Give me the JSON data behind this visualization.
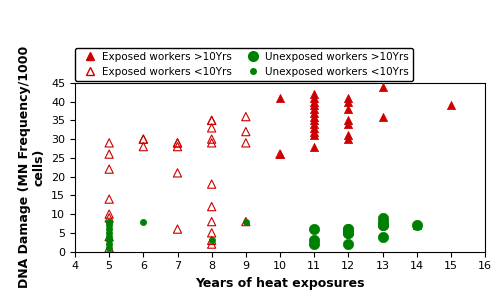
{
  "title": "",
  "xlabel": "Years of heat exposures",
  "ylabel": "DNA Damage (MN Frequency/1000\ncells)",
  "xlim": [
    4,
    16
  ],
  "ylim": [
    0,
    45
  ],
  "xticks": [
    4,
    5,
    6,
    7,
    8,
    9,
    10,
    11,
    12,
    13,
    14,
    15,
    16
  ],
  "yticks": [
    0,
    5,
    10,
    15,
    20,
    25,
    30,
    35,
    40,
    45
  ],
  "exposed_gt10_x": [
    10,
    10,
    11,
    11,
    11,
    11,
    11,
    11,
    11,
    11,
    11,
    11,
    11,
    11,
    11,
    12,
    12,
    12,
    12,
    12,
    12,
    12,
    13,
    13,
    14,
    15
  ],
  "exposed_gt10_y": [
    41,
    26,
    42,
    41,
    40,
    39,
    38,
    37,
    36,
    35,
    34,
    33,
    32,
    31,
    28,
    41,
    40,
    38,
    35,
    34,
    31,
    30,
    44,
    36,
    7,
    39
  ],
  "exposed_lt10_x": [
    5,
    5,
    5,
    5,
    5,
    5,
    5,
    5,
    6,
    6,
    6,
    7,
    7,
    7,
    7,
    7,
    8,
    8,
    8,
    8,
    8,
    8,
    8,
    8,
    8,
    8,
    8,
    9,
    9,
    9,
    9,
    10
  ],
  "exposed_lt10_y": [
    29,
    26,
    22,
    14,
    10,
    9,
    4,
    1,
    30,
    30,
    28,
    29,
    29,
    28,
    21,
    6,
    35,
    35,
    33,
    30,
    29,
    18,
    12,
    8,
    5,
    3,
    2,
    36,
    32,
    29,
    8,
    26
  ],
  "unexposed_gt10_x": [
    11,
    11,
    11,
    12,
    12,
    12,
    12,
    12,
    13,
    13,
    13,
    13,
    13,
    14
  ],
  "unexposed_gt10_y": [
    6,
    3,
    2,
    6,
    6,
    5,
    5,
    2,
    9,
    8,
    7,
    7,
    4,
    7
  ],
  "unexposed_lt10_x": [
    5,
    5,
    5,
    5,
    5,
    5,
    5,
    5,
    5,
    6,
    8,
    9
  ],
  "unexposed_lt10_y": [
    8,
    8,
    7,
    6,
    5,
    4,
    3,
    2,
    1,
    8,
    3,
    8
  ],
  "color_red": "#CC0000",
  "color_green": "#008000",
  "legend_fontsize": 7.5,
  "axis_fontsize": 9,
  "tick_fontsize": 8
}
